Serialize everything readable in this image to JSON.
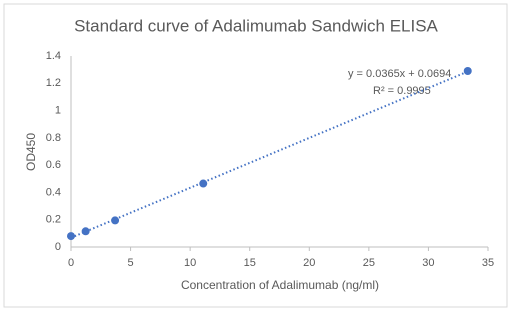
{
  "chart_data": {
    "type": "scatter",
    "title": "Standard curve of Adalimumab Sandwich ELISA",
    "x_label": "Concentration of Adalimumab (ng/ml)",
    "y_label": "OD450",
    "annotations": [
      "y = 0.0365x + 0.0694",
      "R² = 0.9995"
    ],
    "series": [
      {
        "name": "OD450",
        "color": "#4472c4",
        "x": [
          0,
          1.23,
          3.7,
          11.1,
          33.3
        ],
        "values": [
          0.08,
          0.115,
          0.195,
          0.465,
          1.29
        ]
      }
    ],
    "trendline": "linear",
    "xlim": [
      0,
      35
    ],
    "xticks": [
      0,
      5,
      10,
      15,
      20,
      25,
      30,
      35
    ],
    "ylim": [
      0,
      1.4
    ],
    "yticks": [
      0,
      0.2,
      0.4,
      0.6,
      0.8,
      1,
      1.2,
      1.4
    ],
    "grid": false
  }
}
